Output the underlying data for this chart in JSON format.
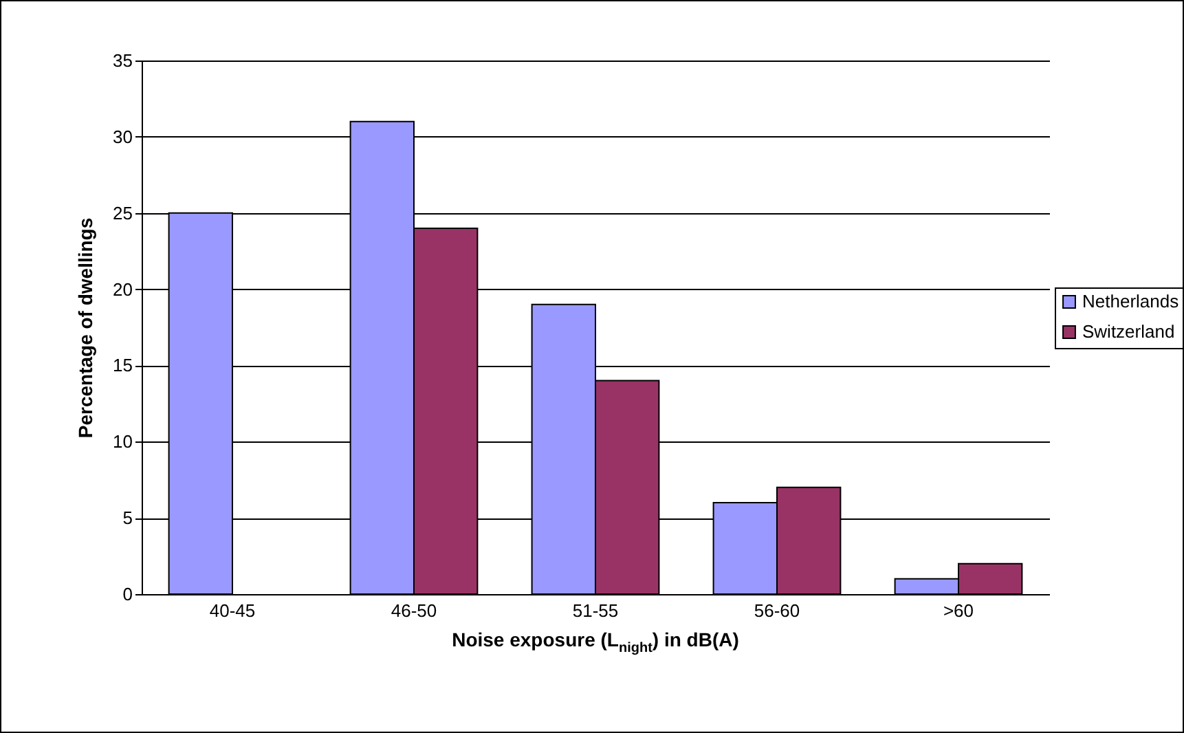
{
  "chart_data": {
    "type": "bar",
    "xlabel": "Noise exposure (L$_{night}$) in dB(A)",
    "ylabel": "Percentage of dwellings",
    "categories": [
      "40-45",
      "46-50",
      "51-55",
      "56-60",
      ">60"
    ],
    "series": [
      {
        "name": "Netherlands",
        "color": "#9999ff",
        "values": [
          25,
          31,
          19,
          6,
          1
        ]
      },
      {
        "name": "Switzerland",
        "color": "#993366",
        "values": [
          null,
          24,
          14,
          7,
          2
        ]
      }
    ],
    "ylim": [
      0,
      35
    ],
    "yticks": [
      0,
      5,
      10,
      15,
      20,
      25,
      30,
      35
    ],
    "grid": "y",
    "legend": "right"
  }
}
